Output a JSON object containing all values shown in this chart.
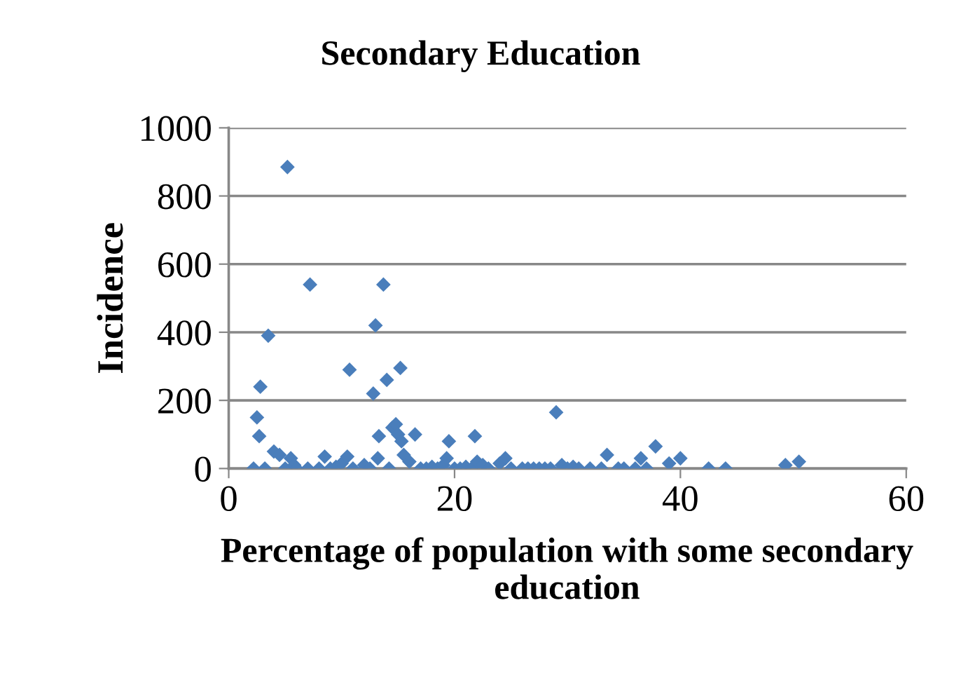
{
  "chart_data": {
    "type": "scatter",
    "title": "Secondary Education",
    "xlabel": "Percentage of population with some secondary education",
    "ylabel": "Incidence",
    "x": [
      2.2,
      2.5,
      2.7,
      2.8,
      3.5,
      3.2,
      4,
      4.5,
      5,
      5.2,
      5.5,
      5.8,
      6,
      7.2,
      7,
      8,
      8.5,
      9,
      9.5,
      10,
      10.5,
      11,
      10.7,
      12,
      12.5,
      12.8,
      13,
      13.3,
      13.7,
      14,
      13.2,
      14.2,
      14.5,
      14.8,
      15,
      15.2,
      15.3,
      15.5,
      16,
      16.5,
      17,
      17.5,
      18,
      18.5,
      19,
      19.5,
      19.3,
      20,
      20.5,
      21,
      21.5,
      21.8,
      22,
      22.5,
      23,
      24,
      24.5,
      25,
      26,
      26.5,
      27,
      27.5,
      28,
      28.5,
      29,
      29.5,
      30,
      30.5,
      31,
      32,
      33.5,
      33,
      34.5,
      35,
      36,
      36.5,
      37,
      37.8,
      39,
      40,
      42.5,
      44,
      49.3,
      50.5
    ],
    "series": [
      {
        "color": "#4a7ebb",
        "values": [
          0,
          150,
          95,
          240,
          390,
          0,
          50,
          40,
          0,
          885,
          30,
          10,
          0,
          540,
          0,
          0,
          35,
          0,
          5,
          15,
          35,
          0,
          290,
          10,
          0,
          220,
          420,
          95,
          540,
          260,
          30,
          0,
          120,
          130,
          100,
          295,
          80,
          40,
          20,
          100,
          0,
          0,
          5,
          0,
          10,
          80,
          30,
          0,
          0,
          5,
          0,
          95,
          20,
          10,
          0,
          15,
          30,
          0,
          0,
          0,
          0,
          0,
          0,
          0,
          165,
          10,
          0,
          5,
          0,
          0,
          40,
          0,
          0,
          0,
          0,
          30,
          0,
          65,
          15,
          30,
          0,
          0,
          10,
          20
        ]
      }
    ],
    "xlim": [
      0,
      60
    ],
    "xticks": [
      0,
      20,
      40,
      60
    ],
    "ylim": [
      0,
      1000
    ],
    "yticks": [
      0,
      200,
      400,
      600,
      800,
      1000
    ],
    "grid": "y",
    "marker": "diamond"
  }
}
